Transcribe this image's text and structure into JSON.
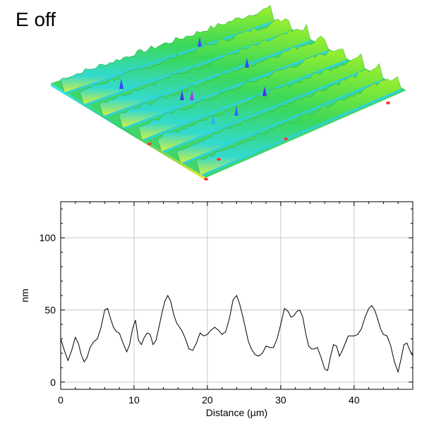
{
  "figure": {
    "title": "E off"
  },
  "surface_view": {
    "description_colors": [
      "#ff3333",
      "#ffff33",
      "#33ff33",
      "#33ffff",
      "#3333ff",
      "#aa33ff"
    ]
  },
  "chart_data": {
    "type": "line",
    "xlabel": "Distance (µm)",
    "ylabel": "nm",
    "xlim": [
      0,
      48
    ],
    "ylim": [
      -5,
      125
    ],
    "xticks": [
      0,
      10,
      20,
      30,
      40
    ],
    "yticks": [
      0,
      50,
      100
    ],
    "grid": true,
    "series": [
      {
        "color": "#000000",
        "x": [
          0,
          0.5,
          1.0,
          1.5,
          2.0,
          2.4,
          2.8,
          3.2,
          3.6,
          4.0,
          4.5,
          5.0,
          5.5,
          6.0,
          6.4,
          6.8,
          7.2,
          7.6,
          8.0,
          8.5,
          9.0,
          9.4,
          9.8,
          10.2,
          10.6,
          11.0,
          11.4,
          11.8,
          12.2,
          12.6,
          13.0,
          13.4,
          13.8,
          14.2,
          14.6,
          15.0,
          15.4,
          15.8,
          16.2,
          16.6,
          17.0,
          17.5,
          18.0,
          18.5,
          19.0,
          19.5,
          20.0,
          20.5,
          21.0,
          21.5,
          22.0,
          22.5,
          23.0,
          23.5,
          24.0,
          24.4,
          24.8,
          25.2,
          25.6,
          26.0,
          26.5,
          27.0,
          27.5,
          28.0,
          28.5,
          29.0,
          29.5,
          30.0,
          30.5,
          31.0,
          31.4,
          31.8,
          32.2,
          32.6,
          33.0,
          33.4,
          33.8,
          34.2,
          34.6,
          35.0,
          35.5,
          36.0,
          36.4,
          36.8,
          37.2,
          37.6,
          38.0,
          38.4,
          38.8,
          39.2,
          39.6,
          40.0,
          40.5,
          41.0,
          41.5,
          42.0,
          42.4,
          42.8,
          43.2,
          43.6,
          44.0,
          44.5,
          45.0,
          45.5,
          46.0,
          46.4,
          46.8,
          47.2,
          47.6,
          48.0
        ],
        "values": [
          30,
          22,
          15,
          22,
          31,
          27,
          19,
          14,
          17,
          24,
          28,
          30,
          38,
          50,
          51,
          44,
          38,
          35,
          34,
          27,
          21,
          26,
          37,
          43,
          29,
          26,
          31,
          34,
          33,
          26,
          29,
          38,
          48,
          56,
          60,
          56,
          47,
          41,
          38,
          35,
          30,
          23,
          22,
          27,
          34,
          32,
          33,
          36,
          38,
          36,
          33,
          35,
          44,
          57,
          60,
          54,
          46,
          37,
          28,
          23,
          19,
          18,
          20,
          25,
          24,
          24,
          30,
          40,
          51,
          49,
          45,
          46,
          49,
          50,
          45,
          34,
          25,
          23,
          23,
          24,
          17,
          9,
          8,
          18,
          26,
          25,
          18,
          22,
          27,
          32,
          32,
          32,
          33,
          37,
          45,
          51,
          53,
          50,
          44,
          37,
          33,
          32,
          25,
          14,
          7,
          16,
          26,
          27,
          22,
          18
        ]
      }
    ]
  }
}
